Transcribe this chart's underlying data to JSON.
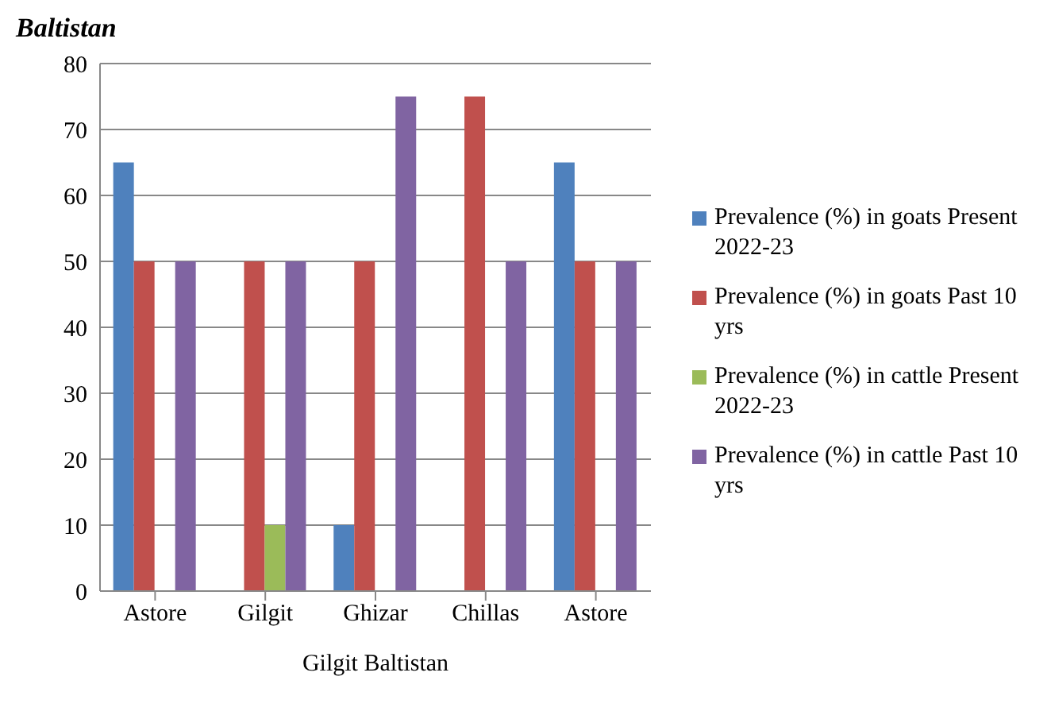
{
  "chart_data": {
    "type": "bar",
    "title": "Baltistan",
    "xlabel": "Gilgit Baltistan",
    "categories": [
      "Astore",
      "Gilgit",
      "Ghizar",
      "Chillas",
      "Astore"
    ],
    "series": [
      {
        "name": "Prevalence (%) in goats Present 2022-23",
        "color": "#4f81bd",
        "values": [
          65,
          null,
          10,
          null,
          65
        ]
      },
      {
        "name": "Prevalence (%) in goats Past 10 yrs",
        "color": "#c0504d",
        "values": [
          50,
          50,
          50,
          75,
          50
        ]
      },
      {
        "name": "Prevalence (%) in cattle Present 2022-23",
        "color": "#9bbb59",
        "values": [
          null,
          10,
          null,
          null,
          null
        ]
      },
      {
        "name": "Prevalence (%) in cattle Past 10 yrs",
        "color": "#8064a2",
        "values": [
          50,
          50,
          75,
          50,
          50
        ]
      }
    ],
    "ylim": [
      0,
      80
    ],
    "yticks": [
      0,
      10,
      20,
      30,
      40,
      50,
      60,
      70,
      80
    ],
    "grid": "y",
    "legend": "right"
  }
}
